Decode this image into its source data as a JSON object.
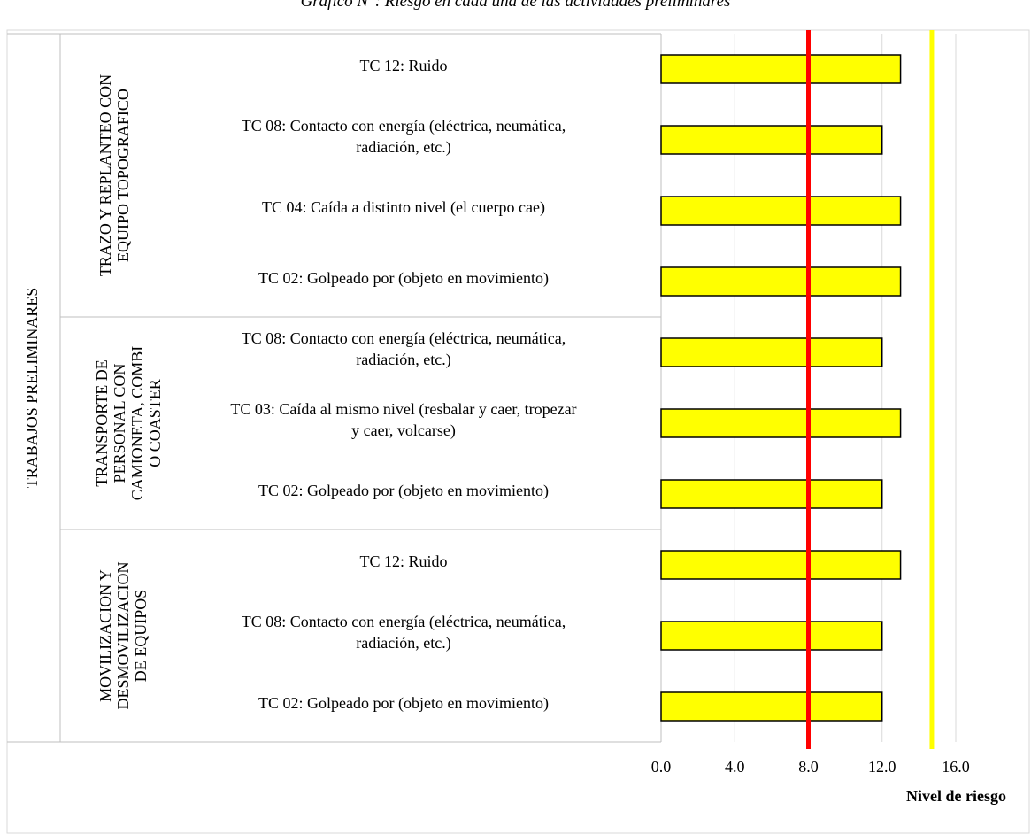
{
  "title": "Gráfico N°: Riesgo en cada una de las actividades preliminares",
  "chart_data": {
    "type": "bar",
    "orientation": "horizontal",
    "xlabel": "Nivel de riesgo",
    "xlim": [
      0,
      16
    ],
    "xticks": [
      "0.0",
      "4.0",
      "8.0",
      "12.0",
      "16.0"
    ],
    "grid": true,
    "bar_color": "#ffff00",
    "reference_lines": [
      {
        "value": 8,
        "color": "#ff0000"
      },
      {
        "value": 14.7,
        "color": "#ffff00"
      }
    ],
    "outer_group": "TRABAJOS PRELIMINARES",
    "groups": [
      {
        "name": "TRAZO Y REPLANTEO CON\nEQUIPO TOPOGRAFICO",
        "count": 4
      },
      {
        "name": "TRANSPORTE DE\nPERSONAL CON\nCAMIONETA, COMBI\nO COASTER",
        "count": 3
      },
      {
        "name": "MOVILIZACION Y\nDESMOVILIZACION\nDE EQUIPOS",
        "count": 3
      }
    ],
    "categories": [
      "TC 12: Ruido",
      "TC 08: Contacto con energía (eléctrica, neumática,\nradiación, etc.)",
      "TC 04: Caída a distinto nivel (el cuerpo cae)",
      "TC 02: Golpeado por (objeto en movimiento)",
      "TC 08: Contacto con energía (eléctrica, neumática,\nradiación, etc.)",
      "TC 03: Caída al mismo nivel (resbalar y caer, tropezar\ny caer, volcarse)",
      "TC 02: Golpeado por (objeto en movimiento)",
      "TC 12: Ruido",
      "TC 08: Contacto con energía (eléctrica, neumática,\nradiación, etc.)",
      "TC 02: Golpeado por (objeto en movimiento)"
    ],
    "values": [
      13,
      12,
      13,
      13,
      12,
      13,
      12,
      13,
      12,
      12
    ]
  }
}
